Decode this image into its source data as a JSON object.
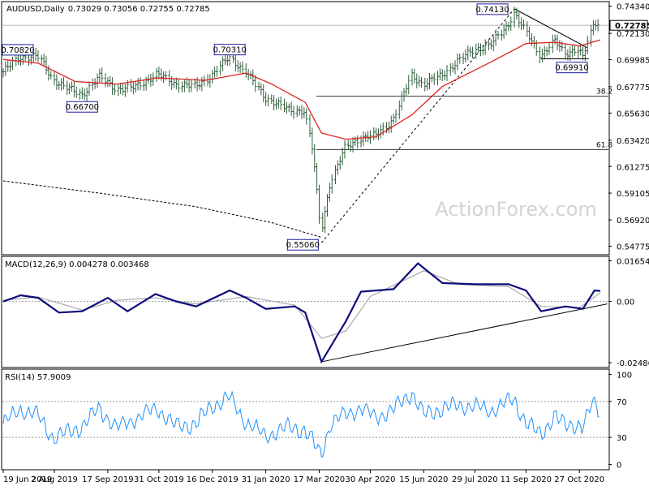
{
  "chart_data": [
    {
      "type": "candlestick",
      "header": {
        "symbol": "AUDUSD",
        "timeframe": "Daily",
        "quote": "0.73029 0.73056 0.72755 0.72785"
      },
      "ohlc": {
        "open": 0.73029,
        "high": 0.73056,
        "low": 0.72755,
        "close": 0.72785
      },
      "watermark": "ActionForex.com",
      "price_axis_ticks": [
        "0.74340",
        "0.72130",
        "0.69985",
        "0.67775",
        "0.65630",
        "0.63420",
        "0.61275",
        "0.59105",
        "0.56920",
        "0.54775"
      ],
      "price_range": [
        0.5415,
        0.7465
      ],
      "current_price_label": "0.72785",
      "x_axis_labels": [
        "19 Jun 2019",
        "2 Aug 2019",
        "17 Sep 2019",
        "31 Oct 2019",
        "16 Dec 2019",
        "31 Jan 2020",
        "17 Mar 2020",
        "30 Apr 2020",
        "15 Jun 2020",
        "29 Jul 2020",
        "11 Sep 2020",
        "27 Oct 2020"
      ],
      "x_axis_values": [
        "2019-06-19",
        "2019-08-02",
        "2019-09-17",
        "2019-10-31",
        "2019-12-16",
        "2020-01-31",
        "2020-03-17",
        "2020-04-30",
        "2020-06-15",
        "2020-07-29",
        "2020-09-11",
        "2020-10-27"
      ],
      "annotations": [
        {
          "text": "0.70820",
          "date": "2019-07-04",
          "price": 0.7082
        },
        {
          "text": "0.66700",
          "date": "2019-08-26",
          "price": 0.667
        },
        {
          "text": "0.70310",
          "date": "2019-12-31",
          "price": 0.7031
        },
        {
          "text": "0.55060",
          "date": "2020-03-19",
          "price": 0.5506
        },
        {
          "text": "0.74130",
          "date": "2020-09-01",
          "price": 0.7413
        },
        {
          "text": "0.69910",
          "date": "2020-10-22",
          "price": 0.6991
        }
      ],
      "fib_levels": [
        {
          "label": "38.2",
          "price": 0.6702
        },
        {
          "label": "61.8",
          "price": 0.6265
        }
      ],
      "close_series": [
        [
          "2019-06-19",
          0.69
        ],
        [
          "2019-07-04",
          0.702
        ],
        [
          "2019-07-19",
          0.703
        ],
        [
          "2019-08-01",
          0.684
        ],
        [
          "2019-08-13",
          0.677
        ],
        [
          "2019-08-26",
          0.671
        ],
        [
          "2019-09-10",
          0.686
        ],
        [
          "2019-09-25",
          0.676
        ],
        [
          "2019-10-10",
          0.677
        ],
        [
          "2019-10-30",
          0.688
        ],
        [
          "2019-11-15",
          0.68
        ],
        [
          "2019-12-02",
          0.678
        ],
        [
          "2019-12-16",
          0.687
        ],
        [
          "2019-12-31",
          0.702
        ],
        [
          "2020-01-14",
          0.69
        ],
        [
          "2020-01-31",
          0.669
        ],
        [
          "2020-02-20",
          0.659
        ],
        [
          "2020-03-05",
          0.658
        ],
        [
          "2020-03-12",
          0.624
        ],
        [
          "2020-03-19",
          0.56
        ],
        [
          "2020-03-27",
          0.6
        ],
        [
          "2020-04-09",
          0.628
        ],
        [
          "2020-04-22",
          0.636
        ],
        [
          "2020-05-05",
          0.638
        ],
        [
          "2020-05-20",
          0.651
        ],
        [
          "2020-06-05",
          0.687
        ],
        [
          "2020-06-15",
          0.68
        ],
        [
          "2020-07-01",
          0.687
        ],
        [
          "2020-07-15",
          0.699
        ],
        [
          "2020-07-29",
          0.708
        ],
        [
          "2020-08-12",
          0.712
        ],
        [
          "2020-08-27",
          0.728
        ],
        [
          "2020-09-01",
          0.738
        ],
        [
          "2020-09-11",
          0.723
        ],
        [
          "2020-09-24",
          0.703
        ],
        [
          "2020-10-06",
          0.715
        ],
        [
          "2020-10-15",
          0.705
        ],
        [
          "2020-10-27",
          0.709
        ],
        [
          "2020-10-30",
          0.7
        ],
        [
          "2020-11-06",
          0.721
        ],
        [
          "2020-11-09",
          0.731
        ],
        [
          "2020-11-14",
          0.728
        ]
      ],
      "moving_averages": [
        {
          "name": "",
          "color": "#e02020",
          "values": [
            [
              "2019-06-19",
              0.7
            ],
            [
              "2019-07-19",
              0.697
            ],
            [
              "2019-08-20",
              0.682
            ],
            [
              "2019-09-25",
              0.68
            ],
            [
              "2019-10-30",
              0.685
            ],
            [
              "2019-12-10",
              0.683
            ],
            [
              "2020-01-14",
              0.689
            ],
            [
              "2020-02-05",
              0.68
            ],
            [
              "2020-03-05",
              0.665
            ],
            [
              "2020-03-19",
              0.64
            ],
            [
              "2020-04-09",
              0.635
            ],
            [
              "2020-05-05",
              0.637
            ],
            [
              "2020-06-05",
              0.655
            ],
            [
              "2020-07-01",
              0.678
            ],
            [
              "2020-08-12",
              0.698
            ],
            [
              "2020-09-11",
              0.713
            ],
            [
              "2020-10-06",
              0.714
            ],
            [
              "2020-10-27",
              0.711
            ],
            [
              "2020-11-14",
              0.716
            ]
          ]
        },
        {
          "name": "",
          "color": "#000000",
          "dashed": true,
          "values": [
            [
              "2019-06-19",
              0.601
            ],
            [
              "2019-09-10",
              0.591
            ],
            [
              "2019-12-02",
              0.58
            ],
            [
              "2020-02-05",
              0.567
            ],
            [
              "2020-03-19",
              0.555
            ]
          ]
        }
      ],
      "trendlines": [
        {
          "from": [
            "2020-03-19",
            0.5506
          ],
          "to": [
            "2020-09-01",
            0.7413
          ],
          "dashed": true
        },
        {
          "from": [
            "2020-09-01",
            0.7413
          ],
          "to": [
            "2020-11-03",
            0.7095
          ],
          "dashed": false
        },
        {
          "from": [
            "2020-09-24",
            0.7005
          ],
          "to": [
            "2020-11-04",
            0.7005
          ],
          "dashed": false
        }
      ],
      "grid": false,
      "legend": "none"
    },
    {
      "type": "line",
      "header": {
        "label": "MACD(12,26,9) 0.004278 0.003468"
      },
      "axis_ticks": [
        "0.01654",
        "0.00",
        "-0.02486"
      ],
      "range": [
        -0.0265,
        0.018
      ],
      "zero_line": 0.0,
      "macd_series": [
        [
          "2019-06-19",
          0.0
        ],
        [
          "2019-07-04",
          0.0025
        ],
        [
          "2019-07-19",
          0.0015
        ],
        [
          "2019-08-06",
          -0.0045
        ],
        [
          "2019-08-26",
          -0.004
        ],
        [
          "2019-09-17",
          0.0015
        ],
        [
          "2019-10-04",
          -0.004
        ],
        [
          "2019-10-28",
          0.003
        ],
        [
          "2019-11-15",
          0.0
        ],
        [
          "2019-12-02",
          -0.002
        ],
        [
          "2019-12-31",
          0.0045
        ],
        [
          "2020-01-14",
          0.0015
        ],
        [
          "2020-01-31",
          -0.003
        ],
        [
          "2020-02-25",
          -0.002
        ],
        [
          "2020-03-05",
          -0.0045
        ],
        [
          "2020-03-19",
          -0.0245
        ],
        [
          "2020-04-09",
          -0.008
        ],
        [
          "2020-04-22",
          0.004
        ],
        [
          "2020-05-20",
          0.005
        ],
        [
          "2020-06-10",
          0.0155
        ],
        [
          "2020-07-01",
          0.0075
        ],
        [
          "2020-07-29",
          0.007
        ],
        [
          "2020-08-27",
          0.007
        ],
        [
          "2020-09-11",
          0.0045
        ],
        [
          "2020-09-24",
          -0.004
        ],
        [
          "2020-10-15",
          -0.002
        ],
        [
          "2020-10-30",
          -0.003
        ],
        [
          "2020-11-09",
          0.0045
        ],
        [
          "2020-11-14",
          0.0043
        ]
      ],
      "signal_series": [
        [
          "2019-06-19",
          0.0005
        ],
        [
          "2019-07-19",
          0.0018
        ],
        [
          "2019-08-26",
          -0.0035
        ],
        [
          "2019-09-25",
          0.0005
        ],
        [
          "2019-10-28",
          0.0015
        ],
        [
          "2019-12-02",
          -0.001
        ],
        [
          "2020-01-14",
          0.002
        ],
        [
          "2020-02-25",
          -0.0015
        ],
        [
          "2020-03-19",
          -0.015
        ],
        [
          "2020-04-09",
          -0.012
        ],
        [
          "2020-04-30",
          0.002
        ],
        [
          "2020-06-15",
          0.0125
        ],
        [
          "2020-07-15",
          0.007
        ],
        [
          "2020-08-27",
          0.006
        ],
        [
          "2020-09-24",
          -0.002
        ],
        [
          "2020-10-27",
          -0.0025
        ],
        [
          "2020-11-14",
          0.0035
        ]
      ],
      "trendlines": [
        {
          "from": [
            "2020-03-19",
            -0.0245
          ],
          "to": [
            "2020-11-20",
            -0.001
          ]
        }
      ]
    },
    {
      "type": "line",
      "header": {
        "label": "RSI(14) 57.9009"
      },
      "axis_ticks": [
        "100",
        "70",
        "30",
        "0"
      ],
      "range": [
        -5,
        105
      ],
      "levels": [
        70,
        30
      ],
      "rsi_series": [
        [
          "2019-06-19",
          45
        ],
        [
          "2019-07-04",
          62
        ],
        [
          "2019-07-19",
          55
        ],
        [
          "2019-08-01",
          30
        ],
        [
          "2019-08-13",
          35
        ],
        [
          "2019-08-26",
          42
        ],
        [
          "2019-09-10",
          62
        ],
        [
          "2019-09-25",
          40
        ],
        [
          "2019-10-10",
          50
        ],
        [
          "2019-10-30",
          62
        ],
        [
          "2019-11-15",
          42
        ],
        [
          "2019-12-02",
          45
        ],
        [
          "2019-12-16",
          65
        ],
        [
          "2019-12-31",
          75
        ],
        [
          "2020-01-14",
          48
        ],
        [
          "2020-01-31",
          32
        ],
        [
          "2020-02-20",
          42
        ],
        [
          "2020-03-05",
          38
        ],
        [
          "2020-03-12",
          25
        ],
        [
          "2020-03-19",
          10
        ],
        [
          "2020-03-27",
          45
        ],
        [
          "2020-04-09",
          55
        ],
        [
          "2020-04-22",
          62
        ],
        [
          "2020-05-05",
          52
        ],
        [
          "2020-05-20",
          60
        ],
        [
          "2020-06-05",
          80
        ],
        [
          "2020-06-15",
          55
        ],
        [
          "2020-07-01",
          62
        ],
        [
          "2020-07-15",
          66
        ],
        [
          "2020-07-29",
          65
        ],
        [
          "2020-08-12",
          60
        ],
        [
          "2020-08-27",
          70
        ],
        [
          "2020-09-01",
          72
        ],
        [
          "2020-09-11",
          48
        ],
        [
          "2020-09-24",
          32
        ],
        [
          "2020-10-06",
          55
        ],
        [
          "2020-10-15",
          42
        ],
        [
          "2020-10-27",
          45
        ],
        [
          "2020-10-30",
          40
        ],
        [
          "2020-11-06",
          62
        ],
        [
          "2020-11-09",
          68
        ],
        [
          "2020-11-14",
          58
        ]
      ]
    }
  ]
}
